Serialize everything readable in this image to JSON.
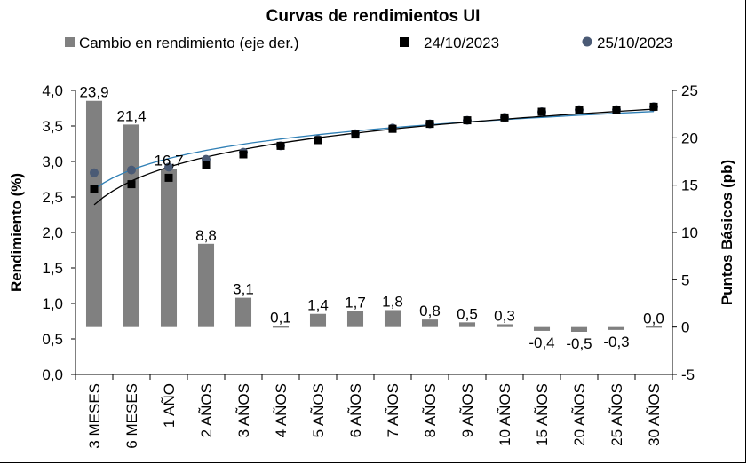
{
  "chart_data": {
    "type": "bar",
    "title": "Curvas de rendimientos UI",
    "ylabel_left": "Rendimiento (%)",
    "ylabel_right": "Puntos Básicos (pb)",
    "ylim_left": [
      0.0,
      4.0
    ],
    "ylim_right": [
      -5,
      25
    ],
    "left_ticks": [
      "0,0",
      "0,5",
      "1,0",
      "1,5",
      "2,0",
      "2,5",
      "3,0",
      "3,5",
      "4,0"
    ],
    "right_ticks": [
      "-5",
      "0",
      "5",
      "10",
      "15",
      "20",
      "25"
    ],
    "categories": [
      "3 MESES",
      "6 MESES",
      "1 AÑO",
      "2 AÑOS",
      "3 AÑOS",
      "4 AÑOS",
      "5 AÑOS",
      "6 AÑOS",
      "7 AÑOS",
      "8 AÑOS",
      "9 AÑOS",
      "10 AÑOS",
      "15 AÑOS",
      "20 AÑOS",
      "25 AÑOS",
      "30 AÑOS"
    ],
    "series": [
      {
        "name": "Cambio en rendimiento (eje der.)",
        "type": "bar",
        "axis": "right",
        "color": "#808080",
        "values": [
          23.9,
          21.4,
          16.7,
          8.8,
          3.1,
          0.1,
          1.4,
          1.7,
          1.8,
          0.8,
          0.5,
          0.3,
          -0.4,
          -0.5,
          -0.3,
          0.0
        ],
        "labels": [
          "23,9",
          "21,4",
          "16,7",
          "8,8",
          "3,1",
          "0,1",
          "1,4",
          "1,7",
          "1,8",
          "0,8",
          "0,5",
          "0,3",
          "-0,4",
          "-0,5",
          "-0,3",
          "0,0"
        ]
      },
      {
        "name": "24/10/2023",
        "type": "scatter",
        "axis": "left",
        "marker": "square",
        "color": "#000000",
        "trendline_color": "#000000",
        "values": [
          2.61,
          2.68,
          2.77,
          2.95,
          3.1,
          3.22,
          3.3,
          3.38,
          3.46,
          3.53,
          3.58,
          3.62,
          3.7,
          3.72,
          3.73,
          3.77
        ]
      },
      {
        "name": "25/10/2023",
        "type": "scatter",
        "axis": "left",
        "marker": "circle",
        "color": "#4a5a75",
        "trendline_color": "#2f7fb5",
        "values": [
          2.84,
          2.88,
          2.92,
          3.03,
          3.13,
          3.22,
          3.31,
          3.39,
          3.47,
          3.53,
          3.58,
          3.62,
          3.7,
          3.73,
          3.73,
          3.77
        ]
      }
    ],
    "legend_position": "top",
    "grid": false
  }
}
